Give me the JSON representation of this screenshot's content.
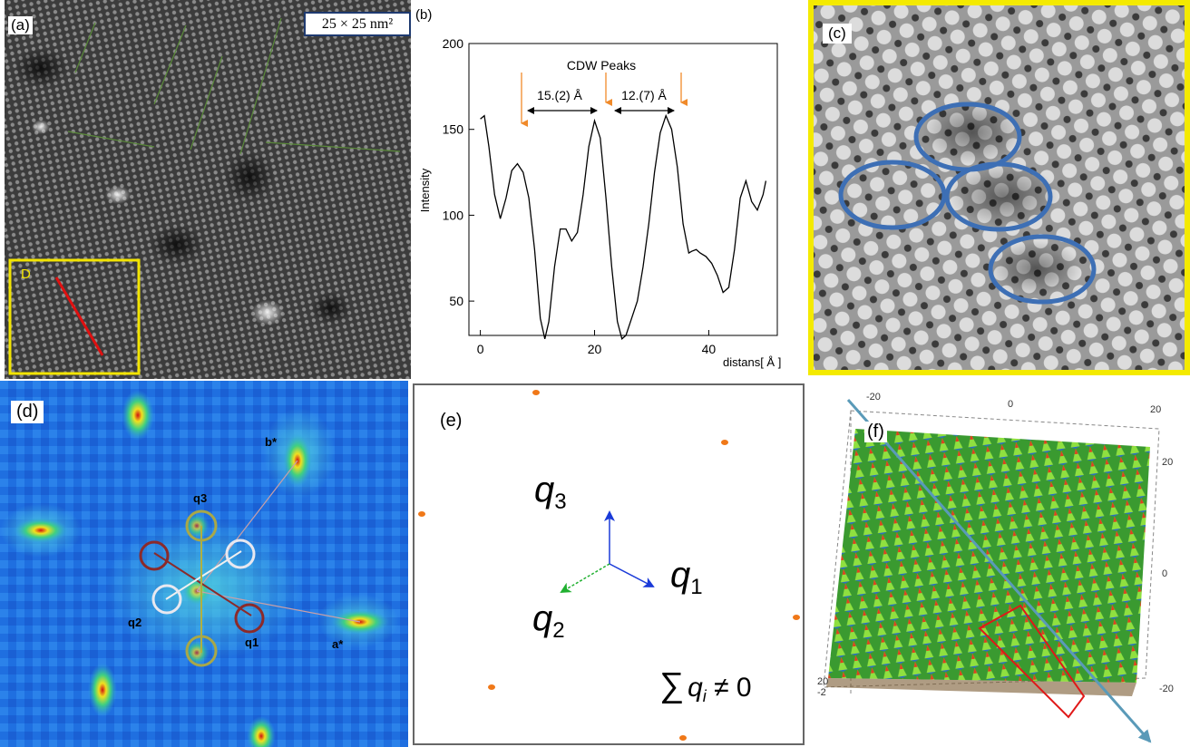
{
  "panel_a": {
    "label": "(a)",
    "scale_text": "25 × 25 nm²",
    "inset_label": "D"
  },
  "panel_b": {
    "label": "(b)",
    "annotation_title": "CDW Peaks",
    "spacing_1": "15.(2) Å",
    "spacing_2": "12.(7) Å"
  },
  "panel_c": {
    "label": "(c)"
  },
  "panel_d": {
    "label": "(d)",
    "b_star": "b*",
    "a_star": "a*",
    "q1": "q1",
    "q2": "q2",
    "q3": "q3"
  },
  "panel_e": {
    "label": "(e)",
    "q1": "q",
    "q1_sub": "1",
    "q2": "q",
    "q2_sub": "2",
    "q3": "q",
    "q3_sub": "3",
    "sum_expr": "∑",
    "sum_rest": "q",
    "sum_sub": "i",
    "sum_tail": " ≠ 0"
  },
  "panel_f": {
    "label": "(f)",
    "axis_ticks": [
      "-20",
      "0",
      "20",
      "20",
      "0",
      "-20",
      "20",
      "-2"
    ]
  },
  "chart_data": {
    "type": "line",
    "title": "",
    "xlabel": "distans[ Å ]",
    "ylabel": "Intensity",
    "xlim": [
      -2,
      52
    ],
    "ylim": [
      30,
      200
    ],
    "xticks": [
      0,
      20,
      40
    ],
    "yticks": [
      50,
      100,
      150,
      200
    ],
    "xtick_labels": [
      "0",
      "20",
      "40"
    ],
    "ytick_labels": [
      "50",
      "100",
      "150",
      "200"
    ],
    "x": [
      0,
      0.7,
      1.5,
      2.5,
      3.5,
      4.5,
      5.5,
      6.5,
      7.5,
      8.5,
      9.5,
      10.5,
      11.3,
      12.0,
      13.0,
      14.0,
      15.0,
      16.0,
      17.0,
      18.0,
      19.0,
      20.0,
      21.0,
      22.0,
      23.0,
      24.0,
      24.8,
      25.5,
      26.5,
      27.5,
      28.5,
      29.5,
      30.5,
      31.5,
      32.5,
      33.5,
      34.5,
      35.5,
      36.5,
      37.0,
      37.8,
      38.5,
      39.5,
      40.5,
      41.5,
      42.5,
      43.5,
      44.5,
      45.5,
      46.5,
      47.5,
      48.5,
      49.5,
      50.0
    ],
    "y": [
      156,
      158,
      140,
      112,
      98,
      110,
      126,
      130,
      125,
      110,
      80,
      40,
      28,
      38,
      70,
      92,
      92,
      85,
      90,
      112,
      140,
      155,
      145,
      110,
      70,
      38,
      28,
      30,
      40,
      50,
      70,
      95,
      125,
      148,
      158,
      150,
      128,
      95,
      78,
      79,
      80,
      78,
      76,
      72,
      65,
      55,
      58,
      80,
      110,
      120,
      108,
      103,
      112,
      120
    ],
    "annotations": [
      "CDW Peaks",
      "15.(2) Å",
      "12.(7) Å"
    ]
  }
}
